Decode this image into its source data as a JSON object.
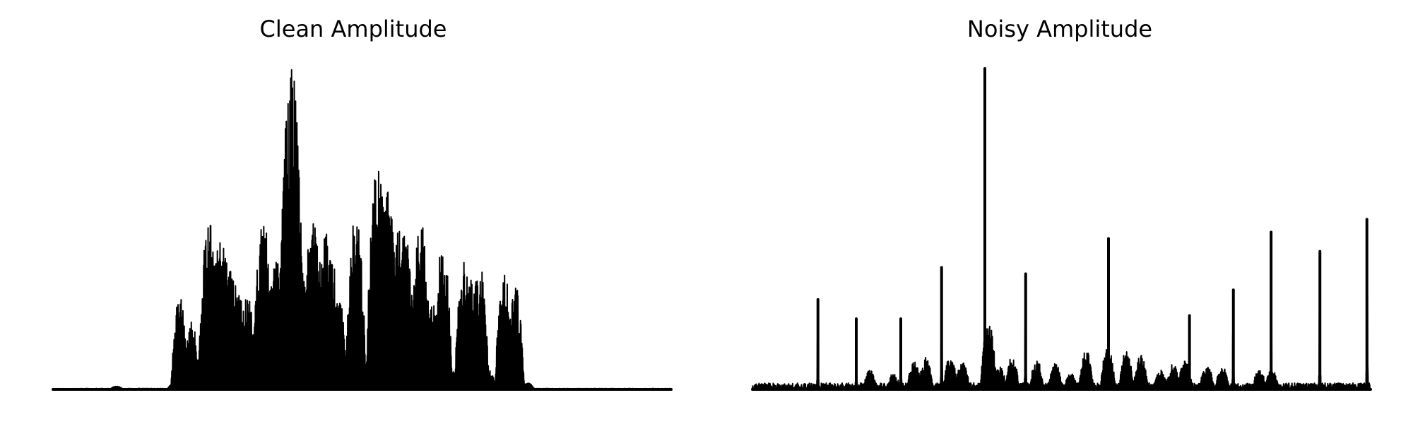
{
  "chart_data": [
    {
      "type": "line",
      "title": "Clean Amplitude",
      "xlabel": "",
      "ylabel": "",
      "axes_visible": false,
      "ylim": [
        0,
        1
      ],
      "line_color": "#000000",
      "series": [
        {
          "envelope_bursts": [
            [
              0.103,
              0.01
            ],
            [
              0.196,
              0.02
            ],
            [
              0.205,
              0.29
            ],
            [
              0.224,
              0.21
            ],
            [
              0.247,
              0.05
            ],
            [
              0.252,
              0.55
            ],
            [
              0.272,
              0.52
            ],
            [
              0.288,
              0.4
            ],
            [
              0.3,
              0.04
            ],
            [
              0.302,
              0.3
            ],
            [
              0.314,
              0.3
            ],
            [
              0.326,
              0.05
            ],
            [
              0.33,
              0.15
            ],
            [
              0.34,
              0.53
            ],
            [
              0.352,
              0.08
            ],
            [
              0.362,
              0.44
            ],
            [
              0.375,
              0.44
            ],
            [
              0.382,
              0.58
            ],
            [
              0.386,
              1.0
            ],
            [
              0.392,
              0.2
            ],
            [
              0.4,
              0.37
            ],
            [
              0.41,
              0.38
            ],
            [
              0.42,
              0.53
            ],
            [
              0.43,
              0.05
            ],
            [
              0.44,
              0.52
            ],
            [
              0.452,
              0.42
            ],
            [
              0.463,
              0.28
            ],
            [
              0.475,
              0.03
            ],
            [
              0.49,
              0.54
            ],
            [
              0.5,
              0.1
            ],
            [
              0.51,
              0.07
            ],
            [
              0.525,
              0.69
            ],
            [
              0.54,
              0.64
            ],
            [
              0.558,
              0.54
            ],
            [
              0.57,
              0.49
            ],
            [
              0.582,
              0.2
            ],
            [
              0.595,
              0.52
            ],
            [
              0.605,
              0.2
            ],
            [
              0.615,
              0.27
            ],
            [
              0.63,
              0.46
            ],
            [
              0.645,
              0.06
            ],
            [
              0.665,
              0.4
            ],
            [
              0.676,
              0.35
            ],
            [
              0.69,
              0.39
            ],
            [
              0.705,
              0.06
            ],
            [
              0.73,
              0.36
            ],
            [
              0.748,
              0.32
            ],
            [
              0.768,
              0.02
            ]
          ]
        }
      ]
    },
    {
      "type": "line",
      "title": "Noisy Amplitude",
      "xlabel": "",
      "ylabel": "",
      "axes_visible": false,
      "ylim": [
        0,
        1
      ],
      "line_color": "#000000",
      "series": [
        {
          "baseline_noise": 0.02,
          "spikes": [
            [
              0.106,
              0.28
            ],
            [
              0.168,
              0.22
            ],
            [
              0.24,
              0.22
            ],
            [
              0.306,
              0.38
            ],
            [
              0.376,
              1.0
            ],
            [
              0.442,
              0.36
            ],
            [
              0.576,
              0.47
            ],
            [
              0.707,
              0.23
            ],
            [
              0.778,
              0.31
            ],
            [
              0.839,
              0.49
            ],
            [
              0.918,
              0.43
            ],
            [
              0.994,
              0.53
            ]
          ],
          "envelope_bursts": [
            [
              0.018,
              0.02
            ],
            [
              0.19,
              0.06
            ],
            [
              0.228,
              0.05
            ],
            [
              0.262,
              0.09
            ],
            [
              0.28,
              0.1
            ],
            [
              0.32,
              0.1
            ],
            [
              0.34,
              0.09
            ],
            [
              0.382,
              0.21
            ],
            [
              0.4,
              0.07
            ],
            [
              0.42,
              0.1
            ],
            [
              0.46,
              0.09
            ],
            [
              0.49,
              0.08
            ],
            [
              0.515,
              0.05
            ],
            [
              0.54,
              0.12
            ],
            [
              0.575,
              0.13
            ],
            [
              0.605,
              0.12
            ],
            [
              0.628,
              0.11
            ],
            [
              0.66,
              0.06
            ],
            [
              0.68,
              0.08
            ],
            [
              0.7,
              0.09
            ],
            [
              0.735,
              0.08
            ],
            [
              0.76,
              0.07
            ],
            [
              0.82,
              0.06
            ],
            [
              0.84,
              0.06
            ]
          ]
        }
      ]
    }
  ]
}
